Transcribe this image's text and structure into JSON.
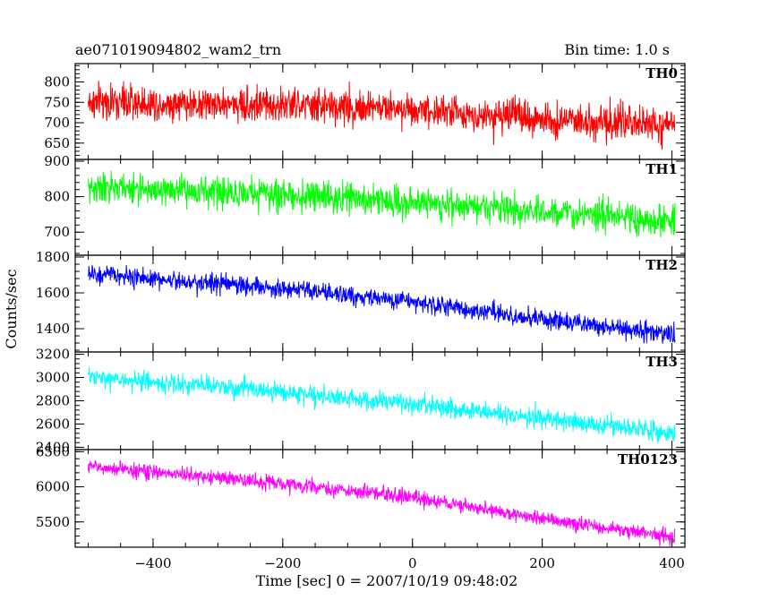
{
  "chart_data": {
    "type": "line",
    "title": "ae071019094802_wam2_trn",
    "bin_time_label": "Bin time: 1.0 s",
    "xlabel": "Time [sec] 0 = 2007/10/19 09:48:02",
    "ylabel": "Counts/sec",
    "xlim": [
      -520,
      420
    ],
    "x_ticks": [
      "−400",
      "−200",
      "0",
      "200",
      "400"
    ],
    "x_tick_values": [
      -400,
      -200,
      0,
      200,
      400
    ],
    "time_range": [
      -500,
      405
    ],
    "grid": false,
    "panels": [
      {
        "name": "TH0",
        "color": "#ff0000",
        "ylim": [
          610,
          845
        ],
        "y_ticks": [
          "800",
          "750",
          "700",
          "650"
        ],
        "y_tick_values": [
          800,
          750,
          700,
          650
        ],
        "trend": [
          [
            -500,
            750
          ],
          [
            -250,
            745
          ],
          [
            0,
            735
          ],
          [
            100,
            720
          ],
          [
            250,
            705
          ],
          [
            405,
            690
          ]
        ],
        "noise": 28
      },
      {
        "name": "TH1",
        "color": "#00ff00",
        "ylim": [
          635,
          905
        ],
        "y_ticks": [
          "900",
          "800",
          "700"
        ],
        "y_tick_values": [
          900,
          800,
          700
        ],
        "trend": [
          [
            -500,
            825
          ],
          [
            -250,
            810
          ],
          [
            0,
            785
          ],
          [
            200,
            760
          ],
          [
            405,
            725
          ]
        ],
        "noise": 28
      },
      {
        "name": "TH2",
        "color": "#0000ff",
        "ylim": [
          1270,
          1810
        ],
        "y_ticks": [
          "1800",
          "1600",
          "1400"
        ],
        "y_tick_values": [
          1800,
          1600,
          1400
        ],
        "trend": [
          [
            -500,
            1705
          ],
          [
            -250,
            1640
          ],
          [
            0,
            1550
          ],
          [
            200,
            1450
          ],
          [
            405,
            1370
          ]
        ],
        "noise": 35
      },
      {
        "name": "TH3",
        "color": "#00ffff",
        "ylim": [
          2380,
          3220
        ],
        "y_ticks": [
          "3200",
          "3000",
          "2800",
          "2600",
          "2400"
        ],
        "y_tick_values": [
          3200,
          3000,
          2800,
          2600,
          2400
        ],
        "trend": [
          [
            -500,
            3000
          ],
          [
            -250,
            2900
          ],
          [
            0,
            2770
          ],
          [
            200,
            2650
          ],
          [
            405,
            2520
          ]
        ],
        "noise": 55
      },
      {
        "name": "TH0123",
        "color": "#ff00ff",
        "ylim": [
          5140,
          6530
        ],
        "y_ticks": [
          "6500",
          "6000",
          "5500"
        ],
        "y_tick_values": [
          6500,
          6000,
          5500
        ],
        "trend": [
          [
            -500,
            6290
          ],
          [
            -250,
            6090
          ],
          [
            0,
            5850
          ],
          [
            200,
            5550
          ],
          [
            405,
            5270
          ]
        ],
        "noise": 70
      }
    ]
  }
}
